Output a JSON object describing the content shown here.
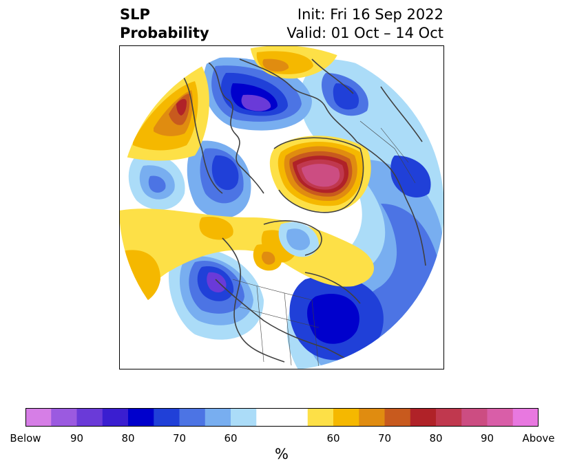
{
  "header": {
    "left_line1": "SLP",
    "left_line2": "Probability",
    "right_line1": "Init: Fri 16 Sep 2022",
    "right_line2": "Valid: 01 Oct – 14 Oct"
  },
  "colors": {
    "below": [
      "#d67ee6",
      "#9b5ae0",
      "#6a3ad8",
      "#3a1ed0",
      "#0000cc",
      "#2040d8",
      "#4c74e4",
      "#78aef0",
      "#abdcf8"
    ],
    "neutral": "#ffffff",
    "above": [
      "#fde047",
      "#f5b800",
      "#e08c10",
      "#c85a1e",
      "#b02228",
      "#c0384e",
      "#cc4d82",
      "#d95ea8",
      "#e878e0"
    ],
    "land_outline": "#404040"
  },
  "colorbar": {
    "ticks": [
      "Below",
      "90",
      "80",
      "70",
      "60",
      "60",
      "70",
      "80",
      "90",
      "Above"
    ],
    "label": "%"
  }
}
